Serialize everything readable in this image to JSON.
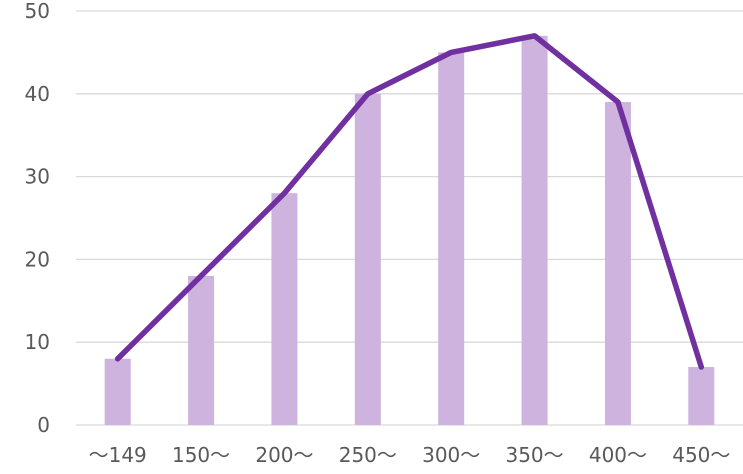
{
  "chart_data": {
    "type": "bar",
    "categories": [
      "〜149",
      "150〜",
      "200〜",
      "250〜",
      "300〜",
      "350〜",
      "400〜",
      "450〜"
    ],
    "series": [
      {
        "type": "bar",
        "values": [
          8,
          18,
          28,
          40,
          45,
          47,
          39,
          7
        ],
        "color": "#cdb3dd"
      },
      {
        "type": "line",
        "values": [
          8,
          18,
          28,
          40,
          45,
          47,
          39,
          7
        ],
        "color": "#7030a0"
      }
    ],
    "y_ticks": [
      "0",
      "10",
      "20",
      "30",
      "40",
      "50"
    ],
    "ylim": [
      0,
      50
    ],
    "grid": true,
    "legend": "none",
    "colors": {
      "grid": "#d9d9d9",
      "tick_text": "#595959"
    }
  }
}
